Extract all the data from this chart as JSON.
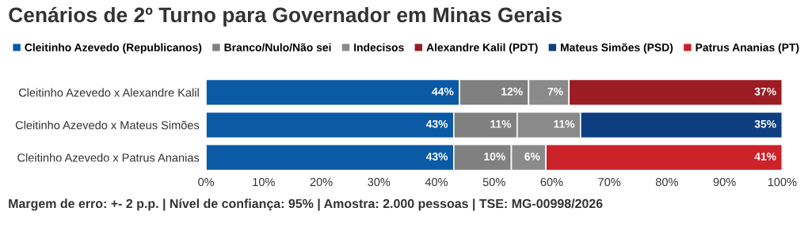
{
  "chart_data": {
    "type": "bar",
    "orientation": "horizontal",
    "stacked": true,
    "title": "Cenários de 2º Turno para Governador em Minas Gerais",
    "categories": [
      "Cleitinho Azevedo x Alexandre Kalil",
      "Cleitinho Azevedo x Mateus Simões",
      "Cleitinho Azevedo x Patrus Ananias"
    ],
    "series": [
      {
        "name": "Cleitinho Azevedo (Republicanos)",
        "color": "#0b5aa6",
        "values": [
          44,
          43,
          43
        ],
        "value_labels": [
          "44%",
          "43%",
          "43%"
        ]
      },
      {
        "name": "Branco/Nulo/Não sei",
        "color": "#808080",
        "values": [
          12,
          11,
          10
        ],
        "value_labels": [
          "12%",
          "11%",
          "10%"
        ]
      },
      {
        "name": "Indecisos",
        "color": "#8a8a8a",
        "values": [
          7,
          11,
          6
        ],
        "value_labels": [
          "7%",
          "11%",
          "6%"
        ]
      },
      {
        "name": "Alexandre Kalil (PDT)",
        "color": "#9c1c23",
        "values": [
          37,
          null,
          null
        ],
        "value_labels": [
          "37%",
          null,
          null
        ]
      },
      {
        "name": "Mateus Simões (PSD)",
        "color": "#0d3e80",
        "values": [
          null,
          35,
          null
        ],
        "value_labels": [
          null,
          "35%",
          null
        ]
      },
      {
        "name": "Patrus Ananias (PT)",
        "color": "#cc2229",
        "values": [
          null,
          null,
          41
        ],
        "value_labels": [
          null,
          null,
          "41%"
        ]
      }
    ],
    "xlim": [
      0,
      100
    ],
    "xticks": [
      {
        "value": 0,
        "label": "0%"
      },
      {
        "value": 10,
        "label": "10%"
      },
      {
        "value": 20,
        "label": "20%"
      },
      {
        "value": 30,
        "label": "30%"
      },
      {
        "value": 40,
        "label": "40%"
      },
      {
        "value": 50,
        "label": "50%"
      },
      {
        "value": 60,
        "label": "60%"
      },
      {
        "value": 70,
        "label": "70%"
      },
      {
        "value": 80,
        "label": "80%"
      },
      {
        "value": 90,
        "label": "90%"
      },
      {
        "value": 100,
        "label": "100%"
      }
    ],
    "legend": "top",
    "grid": false,
    "annotations": [
      "Margem de erro: +- 2 p.p. | Nível de confiança: 95% | Amostra: 2.000 pessoas | TSE: MG-00998/2026"
    ]
  }
}
